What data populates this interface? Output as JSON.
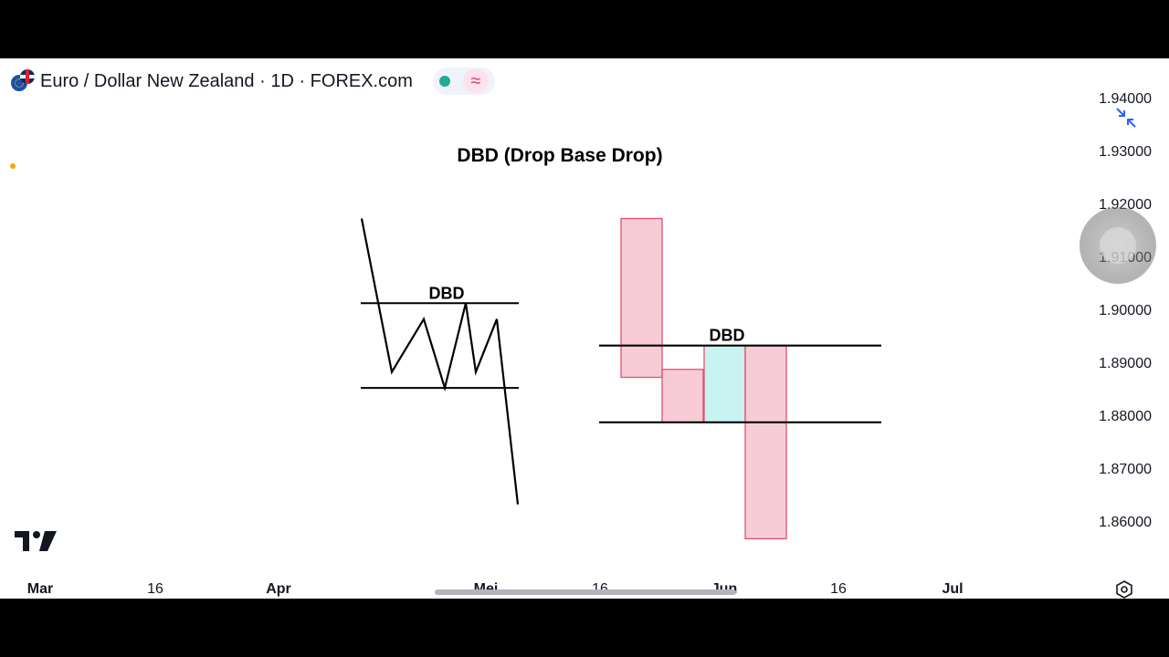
{
  "header": {
    "symbol_title": "Euro / Dollar New Zealand · 1D · FOREX.com",
    "flag_icon": "eur-nzd-flags-icon",
    "status_dot_color": "#22ab94",
    "wave_symbol": "≈"
  },
  "chart_data": {
    "type": "diagram",
    "title": "DBD (Drop Base Drop)",
    "price_axis": {
      "labels": [
        "1.94000",
        "1.93000",
        "1.92000",
        "1.91000",
        "1.90000",
        "1.89000",
        "1.88000",
        "1.87000",
        "1.86000"
      ],
      "range": [
        1.855,
        1.945
      ]
    },
    "time_axis": {
      "labels": [
        {
          "text": "Mar",
          "bold": true
        },
        {
          "text": "16",
          "bold": false
        },
        {
          "text": "Apr",
          "bold": true
        },
        {
          "text": "Mei",
          "bold": true
        },
        {
          "text": "16",
          "bold": false
        },
        {
          "text": "Jun",
          "bold": true
        },
        {
          "text": "16",
          "bold": false
        },
        {
          "text": "Jul",
          "bold": true
        }
      ]
    },
    "line_pattern": {
      "label": "DBD",
      "zone_top_price": 1.9015,
      "zone_bottom_price": 1.8855,
      "path_prices": [
        1.9175,
        1.8885,
        1.8985,
        1.8855,
        1.9015,
        1.8885,
        1.8985,
        1.8635
      ]
    },
    "candle_pattern": {
      "label": "DBD",
      "zone_top_price": 1.8935,
      "zone_bottom_price": 1.879,
      "candles": [
        {
          "open": 1.9175,
          "close": 1.8875,
          "color": "#f8ccd6",
          "border": "#e0506f"
        },
        {
          "open": 1.889,
          "close": 1.879,
          "color": "#f8ccd6",
          "border": "#e0506f"
        },
        {
          "open": 1.879,
          "close": 1.8935,
          "color": "#c8f3f2",
          "border": "#e0506f"
        },
        {
          "open": 1.8935,
          "close": 1.857,
          "color": "#f8ccd6",
          "border": "#e0506f"
        }
      ]
    }
  },
  "colors": {
    "bear_fill": "#f8ccd6",
    "base_fill": "#c8f3f2",
    "candle_border": "#e0506f",
    "line": "#000000"
  },
  "icons": {
    "logo": "tradingview-logo-icon",
    "collapse": "collapse-arrows-icon",
    "settings": "settings-gear-icon"
  }
}
